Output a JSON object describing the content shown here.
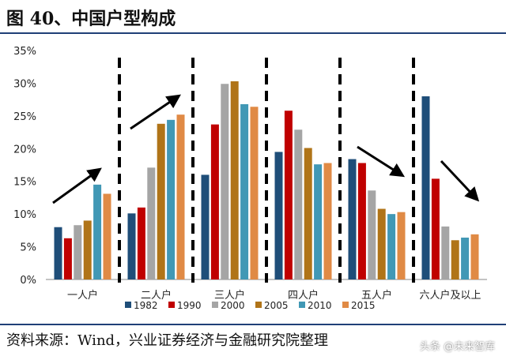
{
  "title": "图 40、中国户型构成",
  "source": "资料来源：Wind，兴业证券经济与金融研究院整理",
  "watermark": "头条 @未来智库",
  "chart_data": {
    "type": "bar",
    "categories": [
      "一人户",
      "二人户",
      "三人户",
      "四人户",
      "五人户",
      "六人户及以上"
    ],
    "series": [
      {
        "name": "1982",
        "color": "#1f4e79",
        "values": [
          8.0,
          10.1,
          16.0,
          19.5,
          18.4,
          28.0
        ]
      },
      {
        "name": "1990",
        "color": "#c00000",
        "values": [
          6.3,
          11.0,
          23.7,
          25.8,
          17.8,
          15.4
        ]
      },
      {
        "name": "2000",
        "color": "#a5a5a5",
        "values": [
          8.3,
          17.1,
          29.9,
          22.9,
          13.6,
          8.1
        ]
      },
      {
        "name": "2005",
        "color": "#b07418",
        "values": [
          9.0,
          23.8,
          30.3,
          20.1,
          10.8,
          6.0
        ]
      },
      {
        "name": "2010",
        "color": "#4198b5",
        "values": [
          14.5,
          24.4,
          26.8,
          17.6,
          10.0,
          6.4
        ]
      },
      {
        "name": "2015",
        "color": "#e08a45",
        "values": [
          13.1,
          25.2,
          26.4,
          17.8,
          10.3,
          6.9
        ]
      }
    ],
    "yticks": [
      "0%",
      "5%",
      "10%",
      "15%",
      "20%",
      "25%",
      "30%",
      "35%"
    ],
    "ylim": [
      0,
      35
    ],
    "legend": "bottom",
    "annotations": [
      "up-arrow",
      "up-arrow",
      "down-arrow",
      "down-arrow"
    ]
  }
}
